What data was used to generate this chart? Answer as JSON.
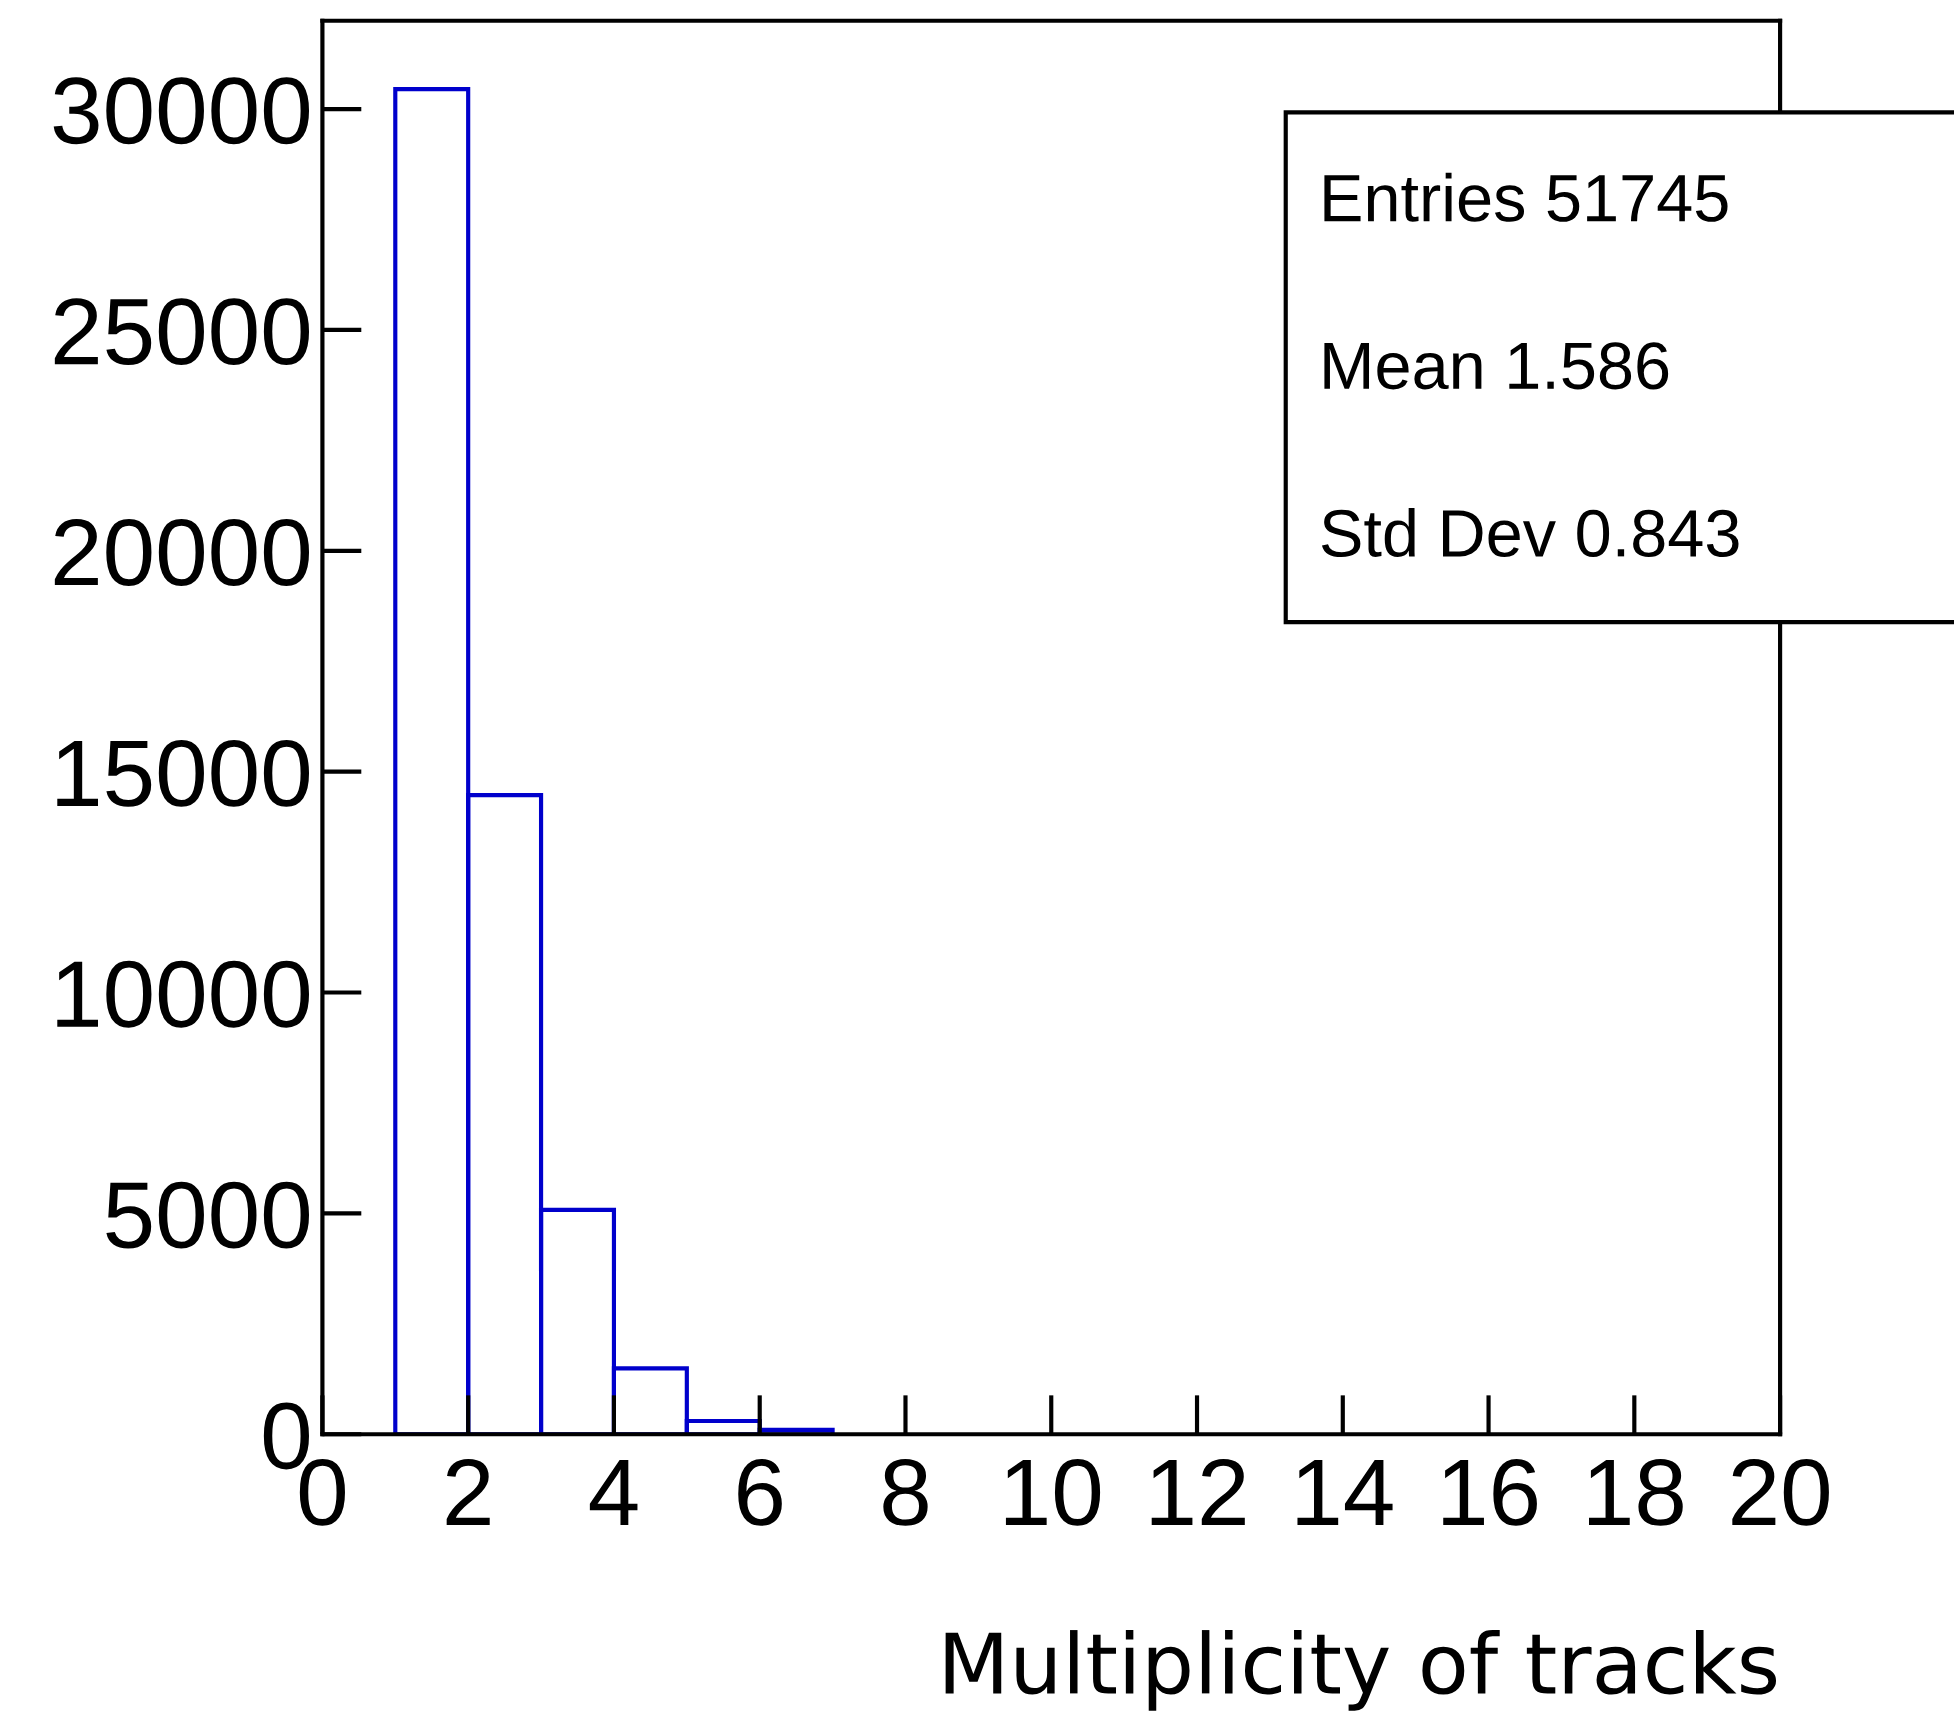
{
  "chart_data": {
    "type": "histogram",
    "xlabel": "Multiplicity of tracks",
    "bins": [
      1,
      2,
      3,
      4,
      5,
      6,
      7
    ],
    "values": [
      30450,
      14470,
      5080,
      1490,
      300,
      100
    ],
    "color": "#0000cc",
    "xlim": [
      0,
      20
    ],
    "xticks": [
      0,
      2,
      4,
      6,
      8,
      10,
      12,
      14,
      16,
      18,
      20
    ],
    "ylim": [
      0,
      32000
    ],
    "yticks": [
      0,
      5000,
      10000,
      15000,
      20000,
      25000,
      30000
    ],
    "grid": false,
    "legend": false,
    "annotations": [
      "Entries 51745",
      "Mean 1.586",
      "Std Dev 0.843"
    ]
  }
}
